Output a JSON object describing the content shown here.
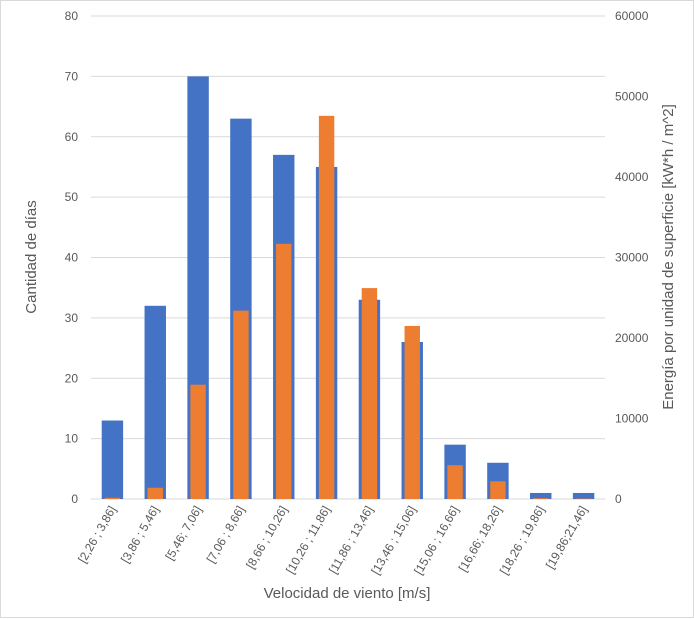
{
  "chart_data": {
    "type": "bar",
    "title": "",
    "xlabel": "Velocidad de viento [m/s]",
    "ylabel": "Cantidad de días",
    "y2label": "Energía por unidad de superficie [kW*h / m^2]",
    "categories": [
      "[2,26 ; 3,86]",
      "[3,86 ; 5,46]",
      "[5,46; 7,06]",
      "[7,06 ; 8,66]",
      "[8,66 ; 10,26]",
      "[10,26 ; 11,86]",
      "[11,86 ; 13,46]",
      "[13,46 ; 15,06]",
      "[15,06 ; 16,66]",
      "[16,66; 18,26]",
      "[18,26 ; 19,86]",
      "[19,86;21,46]"
    ],
    "ylim": [
      0,
      80
    ],
    "y2lim": [
      0,
      60000
    ],
    "yticks": [
      "0",
      "10",
      "20",
      "30",
      "40",
      "50",
      "60",
      "70",
      "80"
    ],
    "y2ticks": [
      "0",
      "10000",
      "20000",
      "30000",
      "40000",
      "50000",
      "60000"
    ],
    "grid": true,
    "legend": "none",
    "series": [
      {
        "axis": "left",
        "color": "#4472c4",
        "values": [
          13,
          32,
          70,
          63,
          57,
          55,
          33,
          26,
          9,
          6,
          1,
          1
        ]
      },
      {
        "axis": "right",
        "color": "#ed7d31",
        "values": [
          150,
          1400,
          14200,
          23400,
          31700,
          47600,
          26200,
          21500,
          4200,
          2200,
          100,
          50
        ]
      }
    ]
  }
}
